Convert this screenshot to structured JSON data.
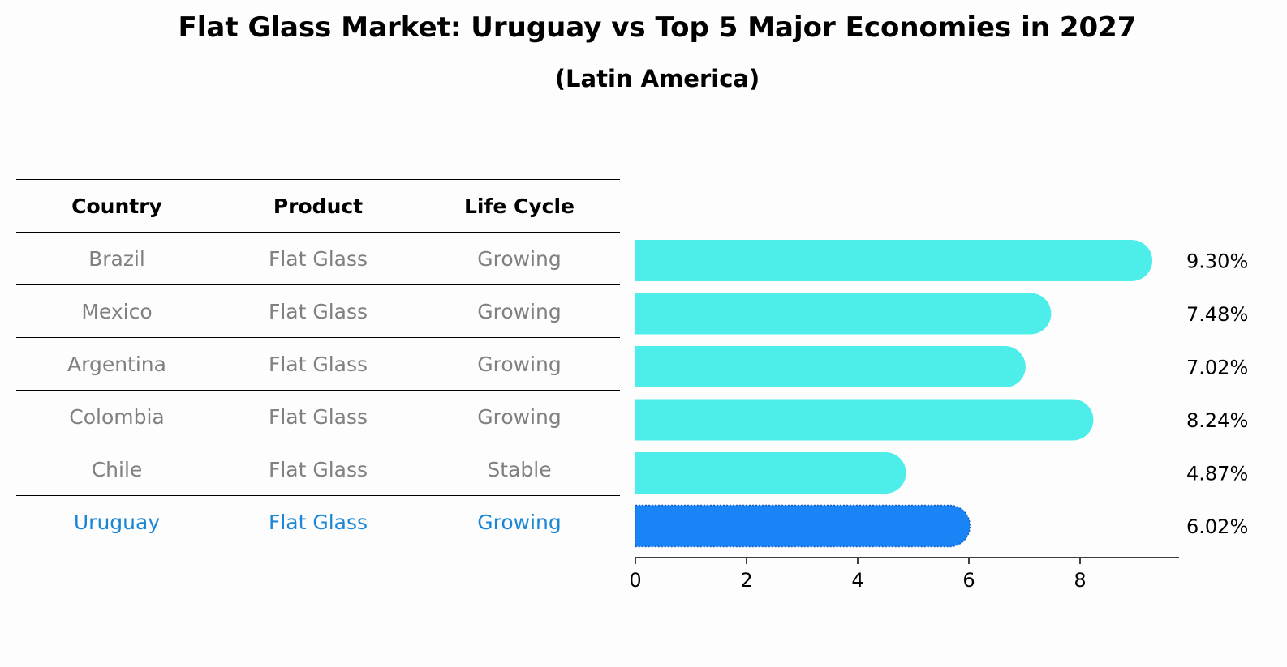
{
  "title": "Flat Glass Market: Uruguay vs Top 5 Major Economies in 2027",
  "subtitle": "(Latin America)",
  "table": {
    "headers": [
      "Country",
      "Product",
      "Life Cycle"
    ],
    "rows": [
      [
        "Brazil",
        "Flat Glass",
        "Growing"
      ],
      [
        "Mexico",
        "Flat Glass",
        "Growing"
      ],
      [
        "Argentina",
        "Flat Glass",
        "Growing"
      ],
      [
        "Colombia",
        "Flat Glass",
        "Growing"
      ],
      [
        "Chile",
        "Flat Glass",
        "Stable"
      ],
      [
        "Uruguay",
        "Flat Glass",
        "Growing"
      ]
    ],
    "highlight_row": 5
  },
  "colors": {
    "bar": "#4deeea",
    "highlight_bar": "#1a83f5",
    "highlight_text": "#1a86d6",
    "muted_text": "#808080"
  },
  "chart_data": {
    "type": "bar",
    "orientation": "horizontal",
    "categories": [
      "Brazil",
      "Mexico",
      "Argentina",
      "Colombia",
      "Chile",
      "Uruguay"
    ],
    "values": [
      9.3,
      7.48,
      7.02,
      8.24,
      4.87,
      6.02
    ],
    "value_labels": [
      "9.30%",
      "7.48%",
      "7.02%",
      "8.24%",
      "4.87%",
      "6.02%"
    ],
    "x_ticks": [
      0,
      2,
      4,
      6,
      8
    ],
    "xlim": [
      0,
      9.8
    ],
    "highlight_category": "Uruguay"
  }
}
